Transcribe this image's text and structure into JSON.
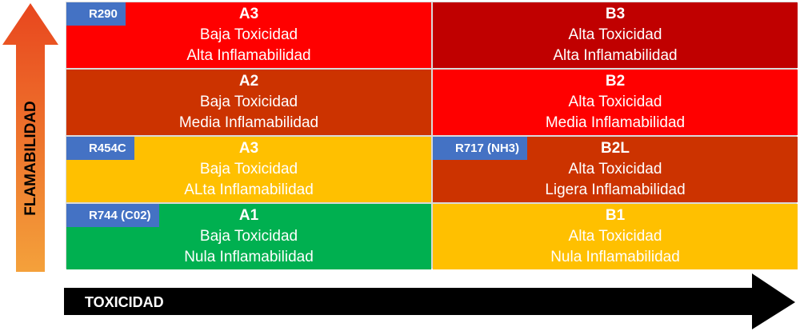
{
  "axes": {
    "y_label": "FLAMABILIDAD",
    "x_label": "TOXICIDAD",
    "y_arrow_color_top": "#e8461e",
    "y_arrow_color_bottom": "#f4a13b",
    "x_arrow_color": "#000000"
  },
  "cells": [
    {
      "code": "A3",
      "line1": "Baja Toxicidad",
      "line2": "Alta Inflamabilidad",
      "color": "#ff0000",
      "tag": "R290"
    },
    {
      "code": "B3",
      "line1": "Alta Toxicidad",
      "line2": "Alta Inflamabilidad",
      "color": "#c00000",
      "tag": ""
    },
    {
      "code": "A2",
      "line1": "Baja Toxicidad",
      "line2": "Media Inflamabilidad",
      "color": "#cc3300",
      "tag": ""
    },
    {
      "code": "B2",
      "line1": "Alta Toxicidad",
      "line2": "Media Inflamabilidad",
      "color": "#ff0000",
      "tag": ""
    },
    {
      "code": "A3",
      "line1": "Baja Toxicidad",
      "line2": "ALta Inflamabilidad",
      "color": "#ffc000",
      "tag": "R454C"
    },
    {
      "code": "B2L",
      "line1": "Alta Toxicidad",
      "line2": "Ligera Inflamabilidad",
      "color": "#cc3300",
      "tag": "R717 (NH3)"
    },
    {
      "code": "A1",
      "line1": "Baja Toxicidad",
      "line2": "Nula Inflamabilidad",
      "color": "#00b050",
      "tag": "R744 (C02)"
    },
    {
      "code": "B1",
      "line1": "Alta Toxicidad",
      "line2": "Nula Inflamabilidad",
      "color": "#ffc000",
      "tag": ""
    }
  ]
}
